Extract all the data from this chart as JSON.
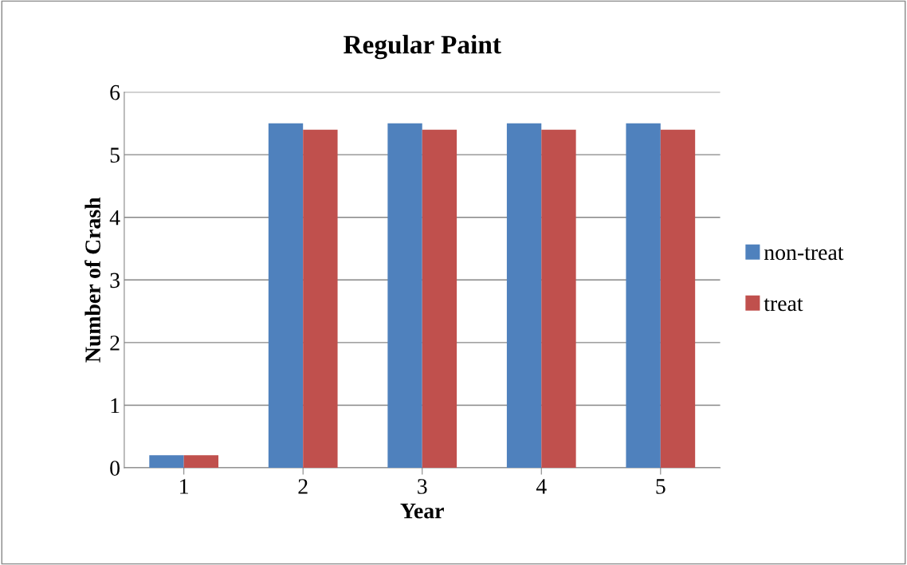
{
  "chart_data": {
    "type": "bar",
    "title": "Regular Paint",
    "xlabel": "Year",
    "ylabel": "Number of Crash",
    "categories": [
      "1",
      "2",
      "3",
      "4",
      "5"
    ],
    "series": [
      {
        "name": "non-treat",
        "color": "#4f81bd",
        "values": [
          0.2,
          5.5,
          5.5,
          5.5,
          5.5
        ]
      },
      {
        "name": "treat",
        "color": "#c0504d",
        "values": [
          0.2,
          5.4,
          5.4,
          5.4,
          5.4
        ]
      }
    ],
    "ylim": [
      0,
      6
    ],
    "yticks": [
      0,
      1,
      2,
      3,
      4,
      5,
      6
    ],
    "grid": "y",
    "legend": "right"
  }
}
